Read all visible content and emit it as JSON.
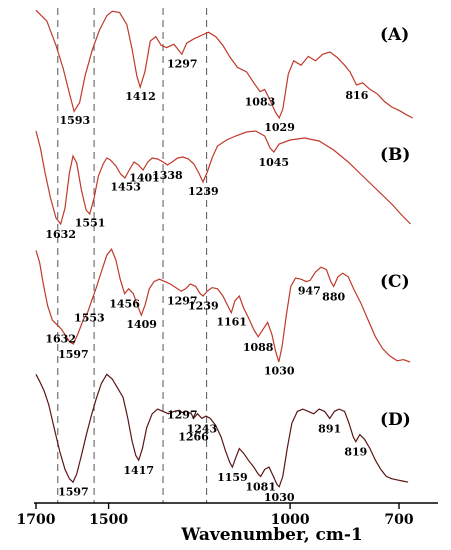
{
  "chart_data": {
    "type": "line",
    "title": "",
    "xlabel": "Wavenumber, cm-1",
    "ylabel": "",
    "x_reversed": true,
    "xlim": [
      1700,
      650
    ],
    "x_ticks": [
      "1700",
      "1500",
      "1000",
      "700"
    ],
    "reference_lines_x": [
      1640,
      1540,
      1350,
      1230
    ],
    "series": [
      {
        "name": "(A)",
        "label": "(A)",
        "peaks": [
          1593,
          1412,
          1297,
          1083,
          1029,
          816
        ],
        "points": [
          [
            1700,
            0.98
          ],
          [
            1670,
            0.88
          ],
          [
            1645,
            0.66
          ],
          [
            1625,
            0.45
          ],
          [
            1610,
            0.25
          ],
          [
            1595,
            0.06
          ],
          [
            1580,
            0.14
          ],
          [
            1565,
            0.38
          ],
          [
            1545,
            0.62
          ],
          [
            1525,
            0.8
          ],
          [
            1505,
            0.93
          ],
          [
            1490,
            0.97
          ],
          [
            1470,
            0.96
          ],
          [
            1450,
            0.85
          ],
          [
            1435,
            0.62
          ],
          [
            1422,
            0.38
          ],
          [
            1413,
            0.28
          ],
          [
            1400,
            0.42
          ],
          [
            1385,
            0.7
          ],
          [
            1370,
            0.74
          ],
          [
            1355,
            0.66
          ],
          [
            1340,
            0.64
          ],
          [
            1320,
            0.67
          ],
          [
            1298,
            0.58
          ],
          [
            1285,
            0.68
          ],
          [
            1265,
            0.72
          ],
          [
            1245,
            0.75
          ],
          [
            1225,
            0.78
          ],
          [
            1205,
            0.74
          ],
          [
            1185,
            0.66
          ],
          [
            1165,
            0.55
          ],
          [
            1145,
            0.46
          ],
          [
            1120,
            0.42
          ],
          [
            1100,
            0.32
          ],
          [
            1083,
            0.24
          ],
          [
            1070,
            0.26
          ],
          [
            1055,
            0.16
          ],
          [
            1040,
            0.05
          ],
          [
            1030,
            0.0
          ],
          [
            1020,
            0.08
          ],
          [
            1005,
            0.4
          ],
          [
            990,
            0.52
          ],
          [
            970,
            0.48
          ],
          [
            950,
            0.56
          ],
          [
            930,
            0.52
          ],
          [
            910,
            0.58
          ],
          [
            890,
            0.6
          ],
          [
            870,
            0.55
          ],
          [
            850,
            0.48
          ],
          [
            835,
            0.42
          ],
          [
            817,
            0.3
          ],
          [
            800,
            0.32
          ],
          [
            780,
            0.26
          ],
          [
            760,
            0.22
          ],
          [
            740,
            0.15
          ],
          [
            720,
            0.1
          ],
          [
            700,
            0.07
          ],
          [
            680,
            0.03
          ],
          [
            662,
            0.0
          ]
        ]
      },
      {
        "name": "(B)",
        "label": "(B)",
        "peaks": [
          1632,
          1551,
          1453,
          1401,
          1338,
          1239,
          1045
        ],
        "points": [
          [
            1700,
            0.97
          ],
          [
            1688,
            0.8
          ],
          [
            1675,
            0.55
          ],
          [
            1660,
            0.3
          ],
          [
            1645,
            0.1
          ],
          [
            1632,
            0.04
          ],
          [
            1620,
            0.2
          ],
          [
            1608,
            0.55
          ],
          [
            1598,
            0.72
          ],
          [
            1588,
            0.65
          ],
          [
            1575,
            0.38
          ],
          [
            1562,
            0.18
          ],
          [
            1552,
            0.14
          ],
          [
            1540,
            0.3
          ],
          [
            1528,
            0.52
          ],
          [
            1515,
            0.64
          ],
          [
            1505,
            0.7
          ],
          [
            1495,
            0.68
          ],
          [
            1480,
            0.62
          ],
          [
            1467,
            0.54
          ],
          [
            1455,
            0.5
          ],
          [
            1443,
            0.58
          ],
          [
            1430,
            0.66
          ],
          [
            1418,
            0.63
          ],
          [
            1405,
            0.58
          ],
          [
            1392,
            0.66
          ],
          [
            1380,
            0.7
          ],
          [
            1365,
            0.69
          ],
          [
            1350,
            0.66
          ],
          [
            1338,
            0.63
          ],
          [
            1325,
            0.66
          ],
          [
            1310,
            0.7
          ],
          [
            1295,
            0.71
          ],
          [
            1280,
            0.69
          ],
          [
            1265,
            0.64
          ],
          [
            1250,
            0.54
          ],
          [
            1240,
            0.46
          ],
          [
            1228,
            0.56
          ],
          [
            1215,
            0.7
          ],
          [
            1200,
            0.82
          ],
          [
            1175,
            0.88
          ],
          [
            1150,
            0.92
          ],
          [
            1120,
            0.96
          ],
          [
            1095,
            0.97
          ],
          [
            1070,
            0.92
          ],
          [
            1055,
            0.8
          ],
          [
            1045,
            0.76
          ],
          [
            1030,
            0.84
          ],
          [
            1000,
            0.88
          ],
          [
            960,
            0.9
          ],
          [
            920,
            0.87
          ],
          [
            880,
            0.78
          ],
          [
            840,
            0.66
          ],
          [
            800,
            0.52
          ],
          [
            760,
            0.38
          ],
          [
            720,
            0.24
          ],
          [
            690,
            0.12
          ],
          [
            668,
            0.04
          ]
        ]
      },
      {
        "name": "(C)",
        "label": "(C)",
        "peaks": [
          1632,
          1597,
          1553,
          1456,
          1409,
          1297,
          1239,
          1161,
          1088,
          1030,
          947,
          880
        ],
        "points": [
          [
            1700,
            0.98
          ],
          [
            1690,
            0.88
          ],
          [
            1680,
            0.7
          ],
          [
            1668,
            0.52
          ],
          [
            1655,
            0.4
          ],
          [
            1642,
            0.36
          ],
          [
            1632,
            0.33
          ],
          [
            1620,
            0.28
          ],
          [
            1608,
            0.22
          ],
          [
            1597,
            0.2
          ],
          [
            1585,
            0.28
          ],
          [
            1570,
            0.4
          ],
          [
            1558,
            0.46
          ],
          [
            1548,
            0.55
          ],
          [
            1535,
            0.66
          ],
          [
            1520,
            0.8
          ],
          [
            1505,
            0.94
          ],
          [
            1492,
            0.99
          ],
          [
            1480,
            0.9
          ],
          [
            1468,
            0.74
          ],
          [
            1456,
            0.62
          ],
          [
            1445,
            0.66
          ],
          [
            1432,
            0.62
          ],
          [
            1420,
            0.52
          ],
          [
            1410,
            0.44
          ],
          [
            1400,
            0.52
          ],
          [
            1388,
            0.66
          ],
          [
            1375,
            0.72
          ],
          [
            1360,
            0.74
          ],
          [
            1345,
            0.72
          ],
          [
            1330,
            0.7
          ],
          [
            1315,
            0.67
          ],
          [
            1300,
            0.64
          ],
          [
            1288,
            0.66
          ],
          [
            1275,
            0.7
          ],
          [
            1260,
            0.68
          ],
          [
            1248,
            0.62
          ],
          [
            1240,
            0.6
          ],
          [
            1228,
            0.64
          ],
          [
            1215,
            0.67
          ],
          [
            1200,
            0.66
          ],
          [
            1185,
            0.6
          ],
          [
            1172,
            0.52
          ],
          [
            1162,
            0.46
          ],
          [
            1152,
            0.56
          ],
          [
            1140,
            0.6
          ],
          [
            1128,
            0.5
          ],
          [
            1115,
            0.42
          ],
          [
            1100,
            0.32
          ],
          [
            1088,
            0.26
          ],
          [
            1075,
            0.32
          ],
          [
            1062,
            0.38
          ],
          [
            1050,
            0.28
          ],
          [
            1040,
            0.14
          ],
          [
            1031,
            0.05
          ],
          [
            1022,
            0.18
          ],
          [
            1010,
            0.45
          ],
          [
            998,
            0.68
          ],
          [
            985,
            0.75
          ],
          [
            970,
            0.74
          ],
          [
            955,
            0.72
          ],
          [
            945,
            0.73
          ],
          [
            930,
            0.8
          ],
          [
            915,
            0.84
          ],
          [
            900,
            0.82
          ],
          [
            888,
            0.72
          ],
          [
            880,
            0.68
          ],
          [
            868,
            0.76
          ],
          [
            855,
            0.79
          ],
          [
            840,
            0.76
          ],
          [
            825,
            0.66
          ],
          [
            805,
            0.54
          ],
          [
            785,
            0.4
          ],
          [
            765,
            0.26
          ],
          [
            745,
            0.16
          ],
          [
            725,
            0.1
          ],
          [
            705,
            0.06
          ],
          [
            688,
            0.07
          ],
          [
            670,
            0.05
          ]
        ]
      },
      {
        "name": "(D)",
        "label": "(D)",
        "peaks": [
          1597,
          1417,
          1297,
          1266,
          1243,
          1159,
          1081,
          1030,
          891,
          819
        ],
        "points": [
          [
            1700,
            0.98
          ],
          [
            1690,
            0.92
          ],
          [
            1678,
            0.84
          ],
          [
            1665,
            0.72
          ],
          [
            1650,
            0.52
          ],
          [
            1635,
            0.32
          ],
          [
            1620,
            0.16
          ],
          [
            1608,
            0.08
          ],
          [
            1598,
            0.05
          ],
          [
            1588,
            0.12
          ],
          [
            1575,
            0.28
          ],
          [
            1562,
            0.45
          ],
          [
            1548,
            0.62
          ],
          [
            1535,
            0.76
          ],
          [
            1520,
            0.9
          ],
          [
            1505,
            0.98
          ],
          [
            1490,
            0.94
          ],
          [
            1475,
            0.86
          ],
          [
            1460,
            0.78
          ],
          [
            1447,
            0.6
          ],
          [
            1435,
            0.4
          ],
          [
            1425,
            0.28
          ],
          [
            1417,
            0.24
          ],
          [
            1407,
            0.34
          ],
          [
            1395,
            0.52
          ],
          [
            1380,
            0.64
          ],
          [
            1365,
            0.68
          ],
          [
            1350,
            0.66
          ],
          [
            1335,
            0.64
          ],
          [
            1320,
            0.66
          ],
          [
            1305,
            0.67
          ],
          [
            1297,
            0.65
          ],
          [
            1285,
            0.66
          ],
          [
            1272,
            0.64
          ],
          [
            1266,
            0.6
          ],
          [
            1255,
            0.64
          ],
          [
            1243,
            0.6
          ],
          [
            1232,
            0.62
          ],
          [
            1220,
            0.6
          ],
          [
            1205,
            0.54
          ],
          [
            1190,
            0.44
          ],
          [
            1178,
            0.32
          ],
          [
            1166,
            0.22
          ],
          [
            1159,
            0.18
          ],
          [
            1150,
            0.26
          ],
          [
            1140,
            0.34
          ],
          [
            1128,
            0.3
          ],
          [
            1115,
            0.24
          ],
          [
            1100,
            0.18
          ],
          [
            1088,
            0.12
          ],
          [
            1081,
            0.1
          ],
          [
            1070,
            0.16
          ],
          [
            1058,
            0.18
          ],
          [
            1046,
            0.1
          ],
          [
            1036,
            0.03
          ],
          [
            1030,
            0.01
          ],
          [
            1020,
            0.1
          ],
          [
            1008,
            0.34
          ],
          [
            995,
            0.56
          ],
          [
            980,
            0.66
          ],
          [
            965,
            0.68
          ],
          [
            950,
            0.66
          ],
          [
            935,
            0.64
          ],
          [
            920,
            0.68
          ],
          [
            905,
            0.66
          ],
          [
            891,
            0.6
          ],
          [
            878,
            0.66
          ],
          [
            865,
            0.68
          ],
          [
            850,
            0.66
          ],
          [
            838,
            0.56
          ],
          [
            826,
            0.44
          ],
          [
            819,
            0.4
          ],
          [
            808,
            0.46
          ],
          [
            795,
            0.42
          ],
          [
            780,
            0.34
          ],
          [
            765,
            0.24
          ],
          [
            750,
            0.16
          ],
          [
            735,
            0.1
          ],
          [
            720,
            0.08
          ],
          [
            705,
            0.07
          ],
          [
            690,
            0.06
          ],
          [
            675,
            0.05
          ]
        ]
      }
    ]
  },
  "style": {
    "line_colors": [
      "#c0392b",
      "#c0392b",
      "#c0392b",
      "#5a1616"
    ],
    "dash_color": "#555555"
  }
}
